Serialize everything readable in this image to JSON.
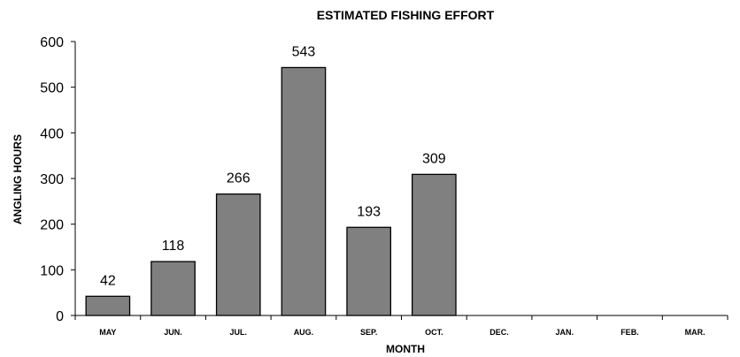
{
  "chart_data": {
    "type": "bar",
    "title": "ESTIMATED FISHING EFFORT",
    "xlabel": "MONTH",
    "ylabel": "ANGLING HOURS",
    "categories": [
      "MAY",
      "JUN.",
      "JUL.",
      "AUG.",
      "SEP.",
      "OCT.",
      "DEC.",
      "JAN.",
      "FEB.",
      "MAR."
    ],
    "values": [
      42,
      118,
      266,
      543,
      193,
      309,
      null,
      null,
      null,
      null
    ],
    "ylim": [
      0,
      600
    ],
    "yticks": [
      0,
      100,
      200,
      300,
      400,
      500,
      600
    ],
    "data_labels": [
      "42",
      "118",
      "266",
      "543",
      "193",
      "309",
      "",
      "",
      "",
      ""
    ],
    "grid": false,
    "bar_color": "#808080",
    "bar_edge_color": "#000000"
  }
}
